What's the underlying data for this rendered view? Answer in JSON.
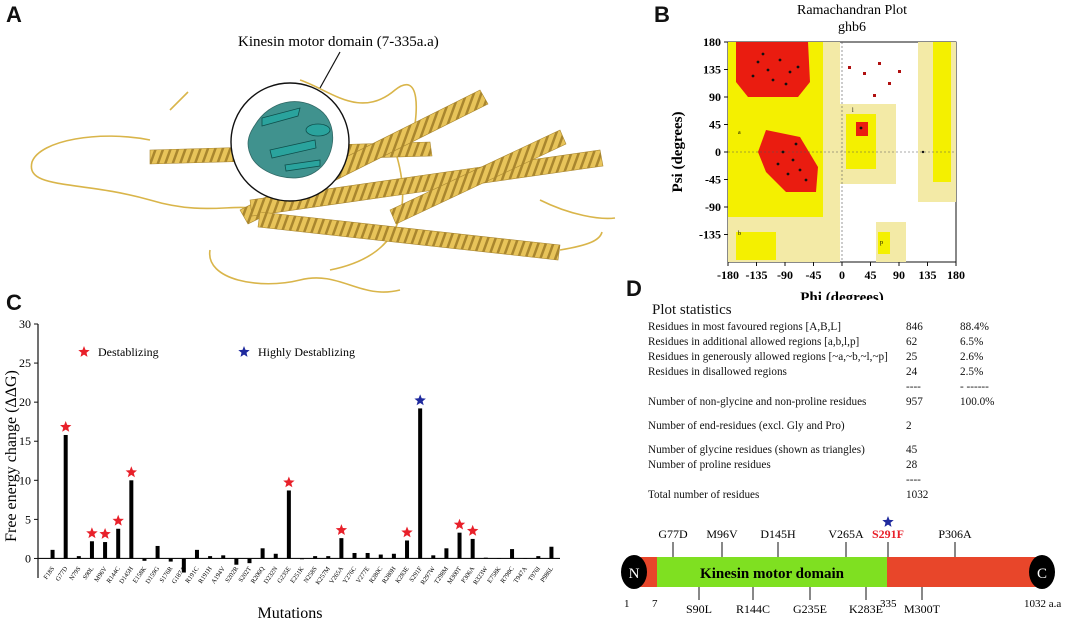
{
  "panels": {
    "a": "A",
    "b": "B",
    "c": "C",
    "d": "D"
  },
  "structure": {
    "annotation": "Kinesin motor domain (7-335a.a)"
  },
  "ramachandran": {
    "title": "Ramachandran Plot",
    "subtitle": "ghb6",
    "xlabel": "Phi (degrees)",
    "ylabel": "Psi (degrees)",
    "xticks": [
      "-180",
      "-135",
      "-90",
      "-45",
      "0",
      "45",
      "90",
      "135",
      "180"
    ],
    "yticks": [
      "180",
      "135",
      "90",
      "45",
      "0",
      "-45",
      "-90",
      "-135"
    ],
    "region_labels": {
      "b": "b",
      "a": "a",
      "l": "l",
      "p": "p"
    }
  },
  "chart_data": {
    "type": "bar",
    "ylabel": "Free energy change (ΔΔG)",
    "xlabel": "Mutations",
    "ylim": [
      -2.5,
      30
    ],
    "yticks": [
      "0",
      "5",
      "10",
      "15",
      "20",
      "25",
      "30"
    ],
    "categories": [
      "F18S",
      "G77D",
      "N79S",
      "S90L",
      "M96V",
      "R144C",
      "D145H",
      "E158K",
      "D159G",
      "S176R",
      "G187A",
      "R191C",
      "R191H",
      "A194V",
      "S202R",
      "S202T",
      "R206Q",
      "D232N",
      "G235E",
      "E251K",
      "N258S",
      "K257M",
      "V265A",
      "Y276C",
      "V277E",
      "R280C",
      "R280H",
      "K283E",
      "S291F",
      "R297W",
      "T298M",
      "M300T",
      "P306A",
      "R323W",
      "E758K",
      "R798C",
      "T947A",
      "T976I",
      "P986L"
    ],
    "values": [
      1.1,
      15.8,
      0.3,
      2.2,
      2.1,
      3.8,
      10.0,
      -0.3,
      1.6,
      -0.4,
      -1.8,
      1.1,
      0.3,
      0.4,
      -0.8,
      -0.6,
      1.3,
      0.6,
      8.7,
      -0.1,
      0.3,
      0.3,
      2.6,
      0.7,
      0.7,
      0.5,
      0.6,
      2.3,
      19.2,
      0.4,
      1.3,
      3.3,
      2.5,
      0.1,
      0.0,
      1.2,
      0.0,
      0.3,
      1.5
    ],
    "markers": {
      "destabilizing": [
        "G77D",
        "S90L",
        "M96V",
        "R144C",
        "D145H",
        "G235E",
        "V265A",
        "K283E",
        "M300T",
        "P306A"
      ],
      "highly_destabilizing": [
        "S291F"
      ]
    },
    "legend": {
      "destabilizing": "Destablizing",
      "highly": "Highly Destablizing"
    },
    "colors": {
      "destabilizing": "#e8202a",
      "highly": "#1f2a9e",
      "bar": "#000000"
    }
  },
  "stats": {
    "title": "Plot statistics",
    "rows": [
      {
        "label": "Residues in most favoured regions  [A,B,L]",
        "n": "846",
        "p": "88.4%"
      },
      {
        "label": "Residues in additional allowed regions  [a,b,l,p]",
        "n": "62",
        "p": "6.5%"
      },
      {
        "label": "Residues in generously allowed regions  [~a,~b,~l,~p]",
        "n": "25",
        "p": "2.6%"
      },
      {
        "label": "Residues in disallowed regions",
        "n": "24",
        "p": "2.5%"
      },
      {
        "label": "",
        "n": "----",
        "p": "- ------"
      },
      {
        "label": "Number of non-glycine and non-proline residues",
        "n": "957",
        "p": "100.0%"
      },
      {
        "label": "Number of end-residues (excl. Gly and Pro)",
        "n": "2",
        "p": ""
      },
      {
        "label": "Number of glycine residues (shown as triangles)",
        "n": "45",
        "p": ""
      },
      {
        "label": "Number of proline residues",
        "n": "28",
        "p": ""
      },
      {
        "label": "",
        "n": "----",
        "p": ""
      },
      {
        "label": "Total number of residues",
        "n": "1032",
        "p": ""
      }
    ]
  },
  "domain_map": {
    "n_label": "N",
    "c_label": "C",
    "domain_label": "Kinesin motor domain",
    "positions": [
      "1",
      "7",
      "335",
      "1032 a.a"
    ],
    "top_mutations": [
      "G77D",
      "M96V",
      "D145H",
      "V265A",
      "S291F",
      "P306A"
    ],
    "bottom_mutations": [
      "S90L",
      "R144C",
      "G235E",
      "K283E",
      "M300T"
    ],
    "colors": {
      "domain": "#7fe021",
      "flank": "#e8462a",
      "highlight": "#e8202a",
      "star": "#1f2a9e"
    }
  }
}
